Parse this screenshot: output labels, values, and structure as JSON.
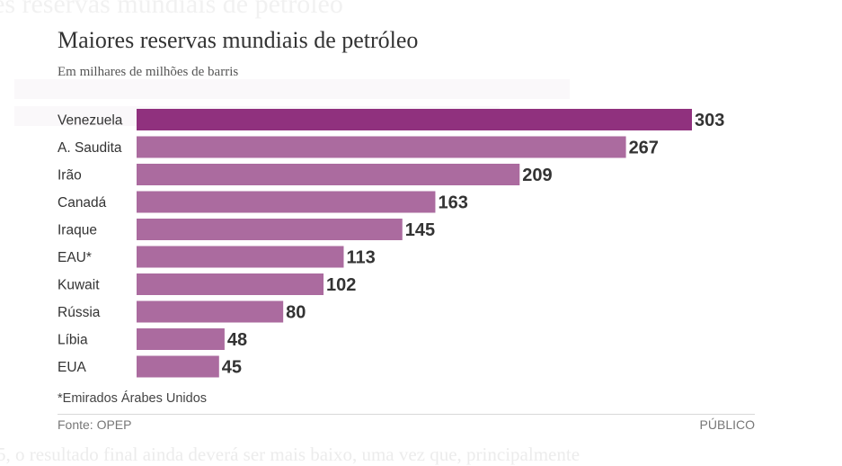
{
  "background": {
    "title_fragment": "es reservas mundiais de petróleo",
    "text_fragment": "5, o resultado final ainda deverá ser mais baixo, uma vez que, principalmente"
  },
  "chart_data": {
    "type": "bar",
    "orientation": "horizontal",
    "title": "Maiores reservas mundiais de petróleo",
    "subtitle": "Em milhares de milhões de barris",
    "categories": [
      "Venezuela",
      "A. Saudita",
      "Irão",
      "Canadá",
      "Iraque",
      "EAU*",
      "Kuwait",
      "Rússia",
      "Líbia",
      "EUA"
    ],
    "values": [
      303,
      267,
      209,
      163,
      145,
      113,
      102,
      80,
      48,
      45
    ],
    "highlight_color": "#90317e",
    "bar_color": "#ab6b9f",
    "xlim": [
      0,
      303
    ],
    "grid": false,
    "note": "*Emirados Árabes Unidos",
    "source": "Fonte: OPEP",
    "brand": "PÚBLICO"
  }
}
